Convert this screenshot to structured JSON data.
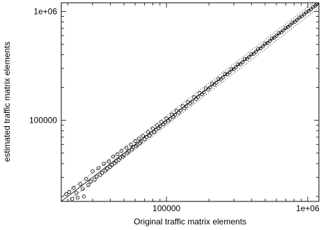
{
  "chart_data": {
    "type": "scatter",
    "title": "",
    "xlabel": "Original traffic matrix elements",
    "ylabel": "estimated traffic matrix elements",
    "x_scale": "log",
    "y_scale": "log",
    "xlim": [
      18000,
      1200000
    ],
    "ylim": [
      18000,
      1200000
    ],
    "x_ticks": [
      {
        "value": 100000,
        "label": "100000"
      },
      {
        "value": 1000000,
        "label": "1e+06"
      }
    ],
    "y_ticks": [
      {
        "value": 100000,
        "label": "100000"
      },
      {
        "value": 1000000,
        "label": "1e+06"
      }
    ],
    "grid": false,
    "reference_lines": [
      {
        "style": "solid",
        "factor": 1.0
      },
      {
        "style": "dotted",
        "factor": 1.1
      },
      {
        "style": "dotted",
        "factor": 0.9
      }
    ],
    "marker": "open-circle",
    "series": [
      {
        "points": [
          [
            19500,
            21000
          ],
          [
            20500,
            22000
          ],
          [
            21500,
            19000
          ],
          [
            22000,
            24000
          ],
          [
            23000,
            21500
          ],
          [
            23500,
            19500
          ],
          [
            24500,
            26000
          ],
          [
            25500,
            23500
          ],
          [
            26000,
            20000
          ],
          [
            27000,
            29000
          ],
          [
            28000,
            25500
          ],
          [
            29000,
            27500
          ],
          [
            30000,
            34000
          ],
          [
            31000,
            28500
          ],
          [
            32000,
            30500
          ],
          [
            33000,
            36500
          ],
          [
            34000,
            31500
          ],
          [
            35000,
            33000
          ],
          [
            36000,
            40000
          ],
          [
            37000,
            34500
          ],
          [
            38000,
            36000
          ],
          [
            39000,
            42000
          ],
          [
            40000,
            37500
          ],
          [
            41000,
            39000
          ],
          [
            42000,
            46500
          ],
          [
            43000,
            40500
          ],
          [
            44000,
            42000
          ],
          [
            45000,
            49000
          ],
          [
            46000,
            43500
          ],
          [
            47000,
            45500
          ],
          [
            48000,
            52500
          ],
          [
            49000,
            46500
          ],
          [
            50000,
            48000
          ],
          [
            52000,
            56000
          ],
          [
            53000,
            50500
          ],
          [
            54000,
            52000
          ],
          [
            56000,
            60000
          ],
          [
            57000,
            54000
          ],
          [
            58000,
            56500
          ],
          [
            60000,
            64500
          ],
          [
            61000,
            58000
          ],
          [
            62000,
            60000
          ],
          [
            64000,
            68000
          ],
          [
            65000,
            62000
          ],
          [
            66000,
            64000
          ],
          [
            68000,
            72000
          ],
          [
            70000,
            67000
          ],
          [
            72000,
            70500
          ],
          [
            74000,
            78000
          ],
          [
            76000,
            72500
          ],
          [
            78000,
            76000
          ],
          [
            80000,
            84000
          ],
          [
            82000,
            78500
          ],
          [
            84000,
            82000
          ],
          [
            86000,
            90000
          ],
          [
            88000,
            85000
          ],
          [
            90000,
            88000
          ],
          [
            92000,
            96500
          ],
          [
            95000,
            92000
          ],
          [
            98000,
            95500
          ],
          [
            100000,
            104000
          ],
          [
            103000,
            99500
          ],
          [
            106000,
            103000
          ],
          [
            109000,
            113000
          ],
          [
            112000,
            108000
          ],
          [
            115000,
            112500
          ],
          [
            118000,
            122500
          ],
          [
            122000,
            117500
          ],
          [
            126000,
            123000
          ],
          [
            130000,
            135000
          ],
          [
            134000,
            129000
          ],
          [
            138000,
            135000
          ],
          [
            142000,
            147000
          ],
          [
            147000,
            142500
          ],
          [
            152000,
            149000
          ],
          [
            157000,
            163000
          ],
          [
            162000,
            157000
          ],
          [
            167000,
            164000
          ],
          [
            172000,
            178000
          ],
          [
            178000,
            173000
          ],
          [
            184000,
            181000
          ],
          [
            190000,
            196000
          ],
          [
            197000,
            192000
          ],
          [
            204000,
            201000
          ],
          [
            211000,
            217000
          ],
          [
            218000,
            213000
          ],
          [
            226000,
            223000
          ],
          [
            234000,
            240000
          ],
          [
            242000,
            237000
          ],
          [
            251000,
            248000
          ],
          [
            260000,
            266000
          ],
          [
            269000,
            264000
          ],
          [
            279000,
            276000
          ],
          [
            289000,
            295000
          ],
          [
            299000,
            294000
          ],
          [
            310000,
            307000
          ],
          [
            321000,
            327000
          ],
          [
            333000,
            328000
          ],
          [
            345000,
            342000
          ],
          [
            358000,
            364000
          ],
          [
            371000,
            366000
          ],
          [
            385000,
            382000
          ],
          [
            399000,
            405000
          ],
          [
            414000,
            409000
          ],
          [
            430000,
            427000
          ],
          [
            446000,
            452000
          ],
          [
            463000,
            458000
          ],
          [
            481000,
            478000
          ],
          [
            499000,
            505000
          ],
          [
            518000,
            513000
          ],
          [
            538000,
            535000
          ],
          [
            558000,
            564000
          ],
          [
            579000,
            574000
          ],
          [
            601000,
            598000
          ],
          [
            624000,
            630000
          ],
          [
            648000,
            643000
          ],
          [
            672000,
            669000
          ],
          [
            698000,
            704000
          ],
          [
            724000,
            719000
          ],
          [
            752000,
            749000
          ],
          [
            780000,
            786000
          ],
          [
            810000,
            805000
          ],
          [
            841000,
            838000
          ],
          [
            873000,
            879000
          ],
          [
            906000,
            901000
          ],
          [
            941000,
            938000
          ],
          [
            977000,
            983000
          ],
          [
            1014000,
            1009000
          ],
          [
            1053000,
            1050000
          ],
          [
            1093000,
            1099000
          ],
          [
            1135000,
            1130000
          ],
          [
            1160000,
            1165000
          ]
        ]
      }
    ]
  }
}
